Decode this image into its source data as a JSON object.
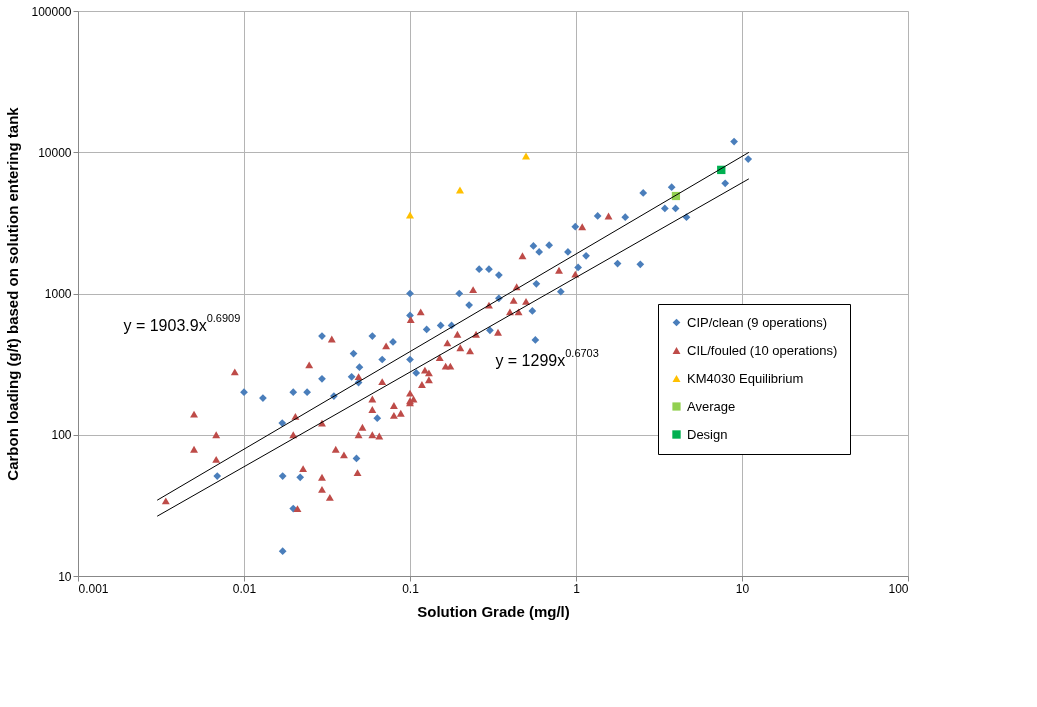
{
  "chart_data": {
    "type": "scatter",
    "xlabel": "Solution Grade (mg/l)",
    "ylabel": "Carbon loading (g/t) based on solution entering tank",
    "log": "xy",
    "grid": true,
    "legend": "right",
    "xlim": [
      0.001,
      100
    ],
    "xticks": [
      0.001,
      0.01,
      0.1,
      1,
      10,
      100
    ],
    "ylim": [
      10,
      100000
    ],
    "yticks": [
      10,
      100,
      1000,
      10000,
      100000
    ],
    "series": [
      {
        "name": "CIP/clean (9 operations)",
        "marker": "diamond",
        "color": "#4a7ebb",
        "x": [
          0.1,
          0.1,
          0.0295,
          0.0593,
          0.079,
          0.0457,
          0.068,
          0.0496,
          0.0295,
          0.0445,
          0.049,
          0.01,
          0.013,
          0.0198,
          0.024,
          0.0348,
          0.0635,
          0.017,
          0.0069,
          0.0171,
          0.0218,
          0.0198,
          0.0171,
          0.0476,
          0.126,
          0.153,
          0.178,
          0.198,
          0.227,
          0.261,
          0.299,
          0.343,
          0.343,
          0.303,
          0.1,
          0.109,
          0.554,
          0.6,
          0.689,
          0.577,
          0.546,
          0.569,
          0.81,
          0.894,
          0.99,
          1.03,
          1.15,
          1.35,
          8.96,
          10.9,
          7.92,
          3.77,
          2.54,
          3.43,
          3.98,
          4.63,
          1.98,
          1.78,
          2.44
        ],
        "values": [
          1000,
          700,
          500,
          500,
          454,
          376,
          341,
          301,
          249,
          257,
          234,
          200,
          182,
          200,
          200,
          188,
          131,
          121,
          51,
          51,
          50,
          30,
          15,
          68,
          557,
          594,
          594,
          1000,
          828,
          1485,
          1485,
          1350,
          925,
          549,
          341,
          274,
          2170,
          1970,
          2200,
          1170,
          752,
          469,
          1030,
          1970,
          2970,
          1530,
          1850,
          3540,
          11900,
          8950,
          6030,
          5660,
          5150,
          4000,
          4000,
          3470,
          3470,
          1630,
          1610
        ]
      },
      {
        "name": "CIL/fouled (10 operations)",
        "marker": "triangle",
        "color": "#be4b48",
        "x": [
          0.0338,
          0.0718,
          0.101,
          0.0247,
          0.0088,
          0.049,
          0.068,
          0.0593,
          0.0593,
          0.08,
          0.08,
          0.088,
          0.1,
          0.005,
          0.0204,
          0.0068,
          0.005,
          0.0068,
          0.00338,
          0.0198,
          0.0295,
          0.0227,
          0.0357,
          0.04,
          0.0295,
          0.0295,
          0.0329,
          0.021,
          0.0483,
          0.049,
          0.0517,
          0.0593,
          0.0653,
          0.1,
          0.1,
          0.116,
          0.24,
          0.299,
          0.339,
          0.193,
          0.25,
          0.168,
          0.201,
          0.23,
          0.151,
          0.164,
          0.175,
          0.123,
          0.13,
          0.13,
          0.118,
          0.105,
          0.439,
          0.421,
          0.5,
          0.4,
          0.451,
          0.476,
          0.79,
          0.99,
          1.09,
          1.57
        ],
        "values": [
          476,
          426,
          653,
          312,
          279,
          258,
          238,
          179,
          151,
          161,
          137,
          142,
          174,
          140,
          135,
          100,
          79,
          67,
          34,
          100,
          121,
          57.5,
          79,
          72,
          50,
          41,
          36,
          30,
          54,
          100,
          113,
          100,
          98,
          197,
          168,
          741,
          1065,
          828,
          532,
          515,
          515,
          447,
          413,
          392,
          352,
          306,
          306,
          287,
          274,
          245,
          227,
          179,
          1117,
          895,
          880,
          741,
          741,
          1850,
          1460,
          1370,
          2970,
          3540
        ]
      },
      {
        "name": "KM4030 Equilibrium",
        "marker": "triangle",
        "color": "#ffc000",
        "x": [
          0.1,
          0.2,
          0.5
        ],
        "values": [
          3600,
          5400,
          9400
        ]
      },
      {
        "name": "Average",
        "marker": "square",
        "color": "#92d050",
        "x": [
          4
        ],
        "values": [
          4900
        ]
      },
      {
        "name": "Design",
        "marker": "square",
        "color": "#00b050",
        "x": [
          7.5
        ],
        "values": [
          7500
        ]
      },
      {
        "type": "line",
        "color": "#000000",
        "x": [
          0.003,
          11
        ],
        "values": [
          34.4,
          9980
        ]
      },
      {
        "type": "line",
        "color": "#000000",
        "x": [
          0.003,
          11
        ],
        "values": [
          26.5,
          6481
        ]
      }
    ],
    "annotations": [
      "y = 1903.9x$^{0.6909}$",
      "y = 1299x$^{0.6703}$"
    ]
  }
}
